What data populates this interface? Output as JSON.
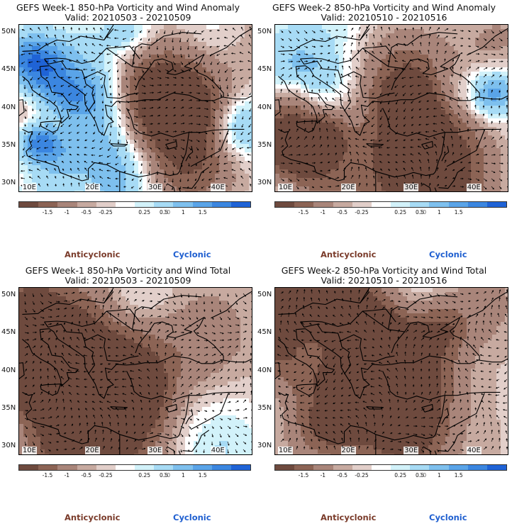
{
  "panels": [
    {
      "title": "GEFS Week-1 850-hPa Vorticity and Wind Anomaly",
      "subtitle": "Valid: 20210503 - 20210509",
      "seed": 11
    },
    {
      "title": "GEFS Week-2 850-hPa Vorticity and Wind Anomaly",
      "subtitle": "Valid: 20210510 - 20210516",
      "seed": 23
    },
    {
      "title": "GEFS Week-1 850-hPa Vorticity and Wind Total",
      "subtitle": "Valid: 20210503 - 20210509",
      "seed": 37
    },
    {
      "title": "GEFS Week-2 850-hPa Vorticity and Wind Total",
      "subtitle": "Valid: 20210510 - 20210516",
      "seed": 53
    }
  ],
  "chart_data": {
    "type": "heatmap",
    "x_ticks": [
      "10E",
      "20E",
      "30E",
      "40E"
    ],
    "y_ticks": [
      "50N",
      "45N",
      "40N",
      "35N",
      "30N"
    ],
    "xlim": [
      9,
      46
    ],
    "ylim": [
      29,
      51
    ],
    "colorbar": {
      "levels": [
        "-1.5",
        "-1",
        "-0.5",
        "-0.25",
        "0.25",
        "0.5",
        "1",
        "1.5"
      ],
      "unit": "10",
      "colors": [
        "#6e4a3e",
        "#8c6455",
        "#a9857a",
        "#c7aaa0",
        "#e2cfca",
        "#ffffff",
        "#d2f2fa",
        "#a7dbf5",
        "#7ec0ee",
        "#5aa4e8",
        "#3b86e0",
        "#1f63d6"
      ]
    },
    "legend": {
      "negative": "Anticyclonic",
      "positive": "Cyclonic"
    }
  }
}
